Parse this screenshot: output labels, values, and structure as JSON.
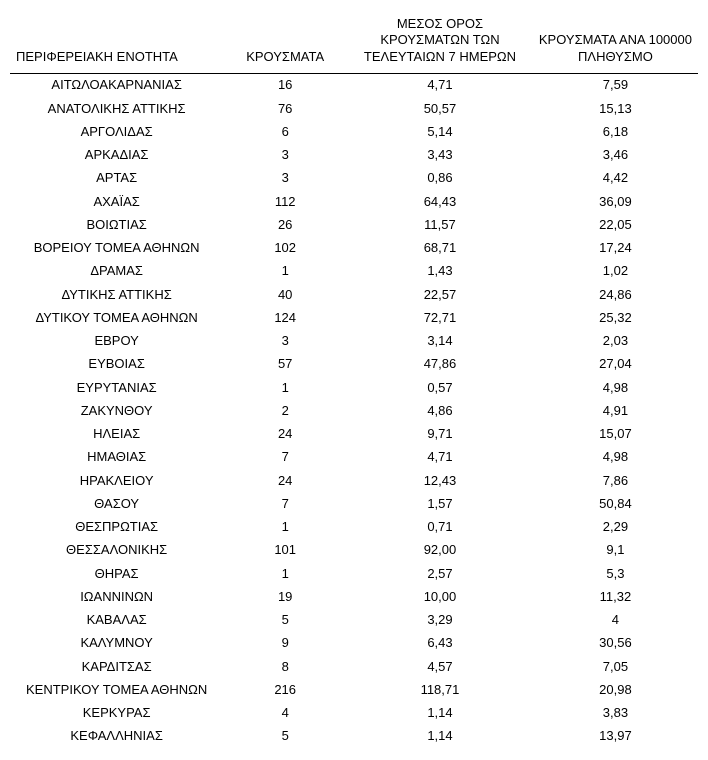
{
  "table": {
    "columns": [
      "ΠΕΡΙΦΕΡΕΙΑΚΗ ΕΝΟΤΗΤΑ",
      "ΚΡΟΥΣΜΑΤΑ",
      "ΜΕΣΟΣ ΟΡΟΣ ΚΡΟΥΣΜΑΤΩΝ ΤΩΝ ΤΕΛΕΥΤΑΙΩΝ 7 ΗΜΕΡΩΝ",
      "ΚΡΟΥΣΜΑΤΑ ΑΝΑ 100000 ΠΛΗΘΥΣΜΟ"
    ],
    "rows": [
      [
        "ΑΙΤΩΛΟΑΚΑΡΝΑΝΙΑΣ",
        "16",
        "4,71",
        "7,59"
      ],
      [
        "ΑΝΑΤΟΛΙΚΗΣ ΑΤΤΙΚΗΣ",
        "76",
        "50,57",
        "15,13"
      ],
      [
        "ΑΡΓΟΛΙΔΑΣ",
        "6",
        "5,14",
        "6,18"
      ],
      [
        "ΑΡΚΑΔΙΑΣ",
        "3",
        "3,43",
        "3,46"
      ],
      [
        "ΑΡΤΑΣ",
        "3",
        "0,86",
        "4,42"
      ],
      [
        "ΑΧΑΪΑΣ",
        "112",
        "64,43",
        "36,09"
      ],
      [
        "ΒΟΙΩΤΙΑΣ",
        "26",
        "11,57",
        "22,05"
      ],
      [
        "ΒΟΡΕΙΟΥ ΤΟΜΕΑ ΑΘΗΝΩΝ",
        "102",
        "68,71",
        "17,24"
      ],
      [
        "ΔΡΑΜΑΣ",
        "1",
        "1,43",
        "1,02"
      ],
      [
        "ΔΥΤΙΚΗΣ ΑΤΤΙΚΗΣ",
        "40",
        "22,57",
        "24,86"
      ],
      [
        "ΔΥΤΙΚΟΥ ΤΟΜΕΑ ΑΘΗΝΩΝ",
        "124",
        "72,71",
        "25,32"
      ],
      [
        "ΕΒΡΟΥ",
        "3",
        "3,14",
        "2,03"
      ],
      [
        "ΕΥΒΟΙΑΣ",
        "57",
        "47,86",
        "27,04"
      ],
      [
        "ΕΥΡΥΤΑΝΙΑΣ",
        "1",
        "0,57",
        "4,98"
      ],
      [
        "ΖΑΚΥΝΘΟΥ",
        "2",
        "4,86",
        "4,91"
      ],
      [
        "ΗΛΕΙΑΣ",
        "24",
        "9,71",
        "15,07"
      ],
      [
        "ΗΜΑΘΙΑΣ",
        "7",
        "4,71",
        "4,98"
      ],
      [
        "ΗΡΑΚΛΕΙΟΥ",
        "24",
        "12,43",
        "7,86"
      ],
      [
        "ΘΑΣΟΥ",
        "7",
        "1,57",
        "50,84"
      ],
      [
        "ΘΕΣΠΡΩΤΙΑΣ",
        "1",
        "0,71",
        "2,29"
      ],
      [
        "ΘΕΣΣΑΛΟΝΙΚΗΣ",
        "101",
        "92,00",
        "9,1"
      ],
      [
        "ΘΗΡΑΣ",
        "1",
        "2,57",
        "5,3"
      ],
      [
        "ΙΩΑΝΝΙΝΩΝ",
        "19",
        "10,00",
        "11,32"
      ],
      [
        "ΚΑΒΑΛΑΣ",
        "5",
        "3,29",
        "4"
      ],
      [
        "ΚΑΛΥΜΝΟΥ",
        "9",
        "6,43",
        "30,56"
      ],
      [
        "ΚΑΡΔΙΤΣΑΣ",
        "8",
        "4,57",
        "7,05"
      ],
      [
        "ΚΕΝΤΡΙΚΟΥ ΤΟΜΕΑ ΑΘΗΝΩΝ",
        "216",
        "118,71",
        "20,98"
      ],
      [
        "ΚΕΡΚΥΡΑΣ",
        "4",
        "1,14",
        "3,83"
      ],
      [
        "ΚΕΦΑΛΛΗΝΙΑΣ",
        "5",
        "1,14",
        "13,97"
      ]
    ],
    "header_fontsize": 13,
    "cell_fontsize": 13,
    "text_color": "#000000",
    "background_color": "#ffffff",
    "border_color": "#000000",
    "column_widths_pct": [
      31,
      18,
      27,
      24
    ],
    "column_alignments": [
      "left",
      "center",
      "center",
      "center"
    ]
  }
}
